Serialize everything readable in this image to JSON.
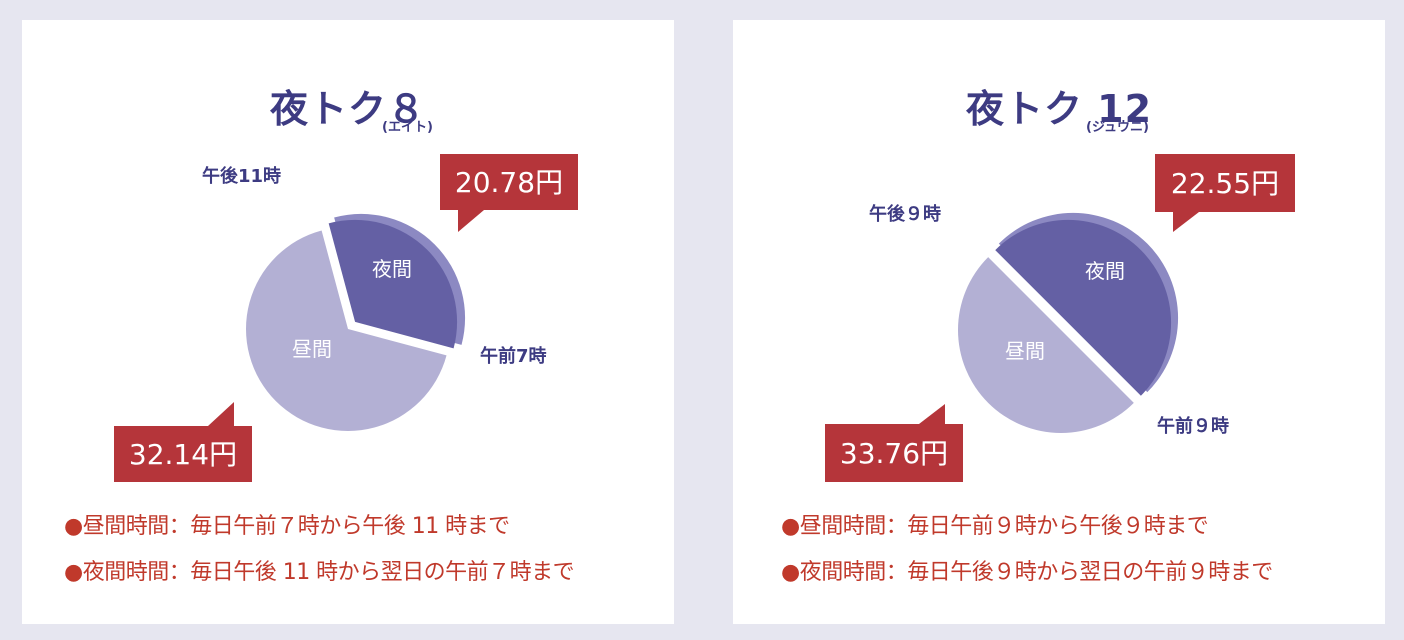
{
  "chart_data": [
    {
      "type": "pie",
      "title": "夜トク８",
      "reading": "(エイト)",
      "slices": [
        {
          "label": "夜間",
          "start_time": "午後11時",
          "end_time": "午前7時",
          "hours": 8,
          "price": "20.78円",
          "color": "#6460a4",
          "edge_color": "#8c89c2"
        },
        {
          "label": "昼間",
          "start_time": "午前7時",
          "end_time": "午後11時",
          "hours": 16,
          "price": "32.14円",
          "color": "#b3b0d4"
        }
      ],
      "legend": [
        "昼間時間：毎日午前７時から午後 11 時まで",
        "夜間時間：毎日午後 11 時から翌日の午前７時まで"
      ]
    },
    {
      "type": "pie",
      "title": "夜トク 12",
      "reading": "(ジュウニ)",
      "slices": [
        {
          "label": "夜間",
          "start_time": "午後９時",
          "end_time": "午前９時",
          "hours": 12,
          "price": "22.55円",
          "color": "#6460a4",
          "edge_color": "#8c89c2"
        },
        {
          "label": "昼間",
          "start_time": "午前９時",
          "end_time": "午後９時",
          "hours": 12,
          "price": "33.76円",
          "color": "#b3b0d4"
        }
      ],
      "legend": [
        "昼間時間：毎日午前９時から午後９時まで",
        "夜間時間：毎日午後９時から翌日の午前９時まで"
      ]
    }
  ],
  "colors": {
    "title": "#3d3b82",
    "callout": "#b5353a",
    "legend_text": "#c0392b",
    "background": "#e6e6f0"
  }
}
